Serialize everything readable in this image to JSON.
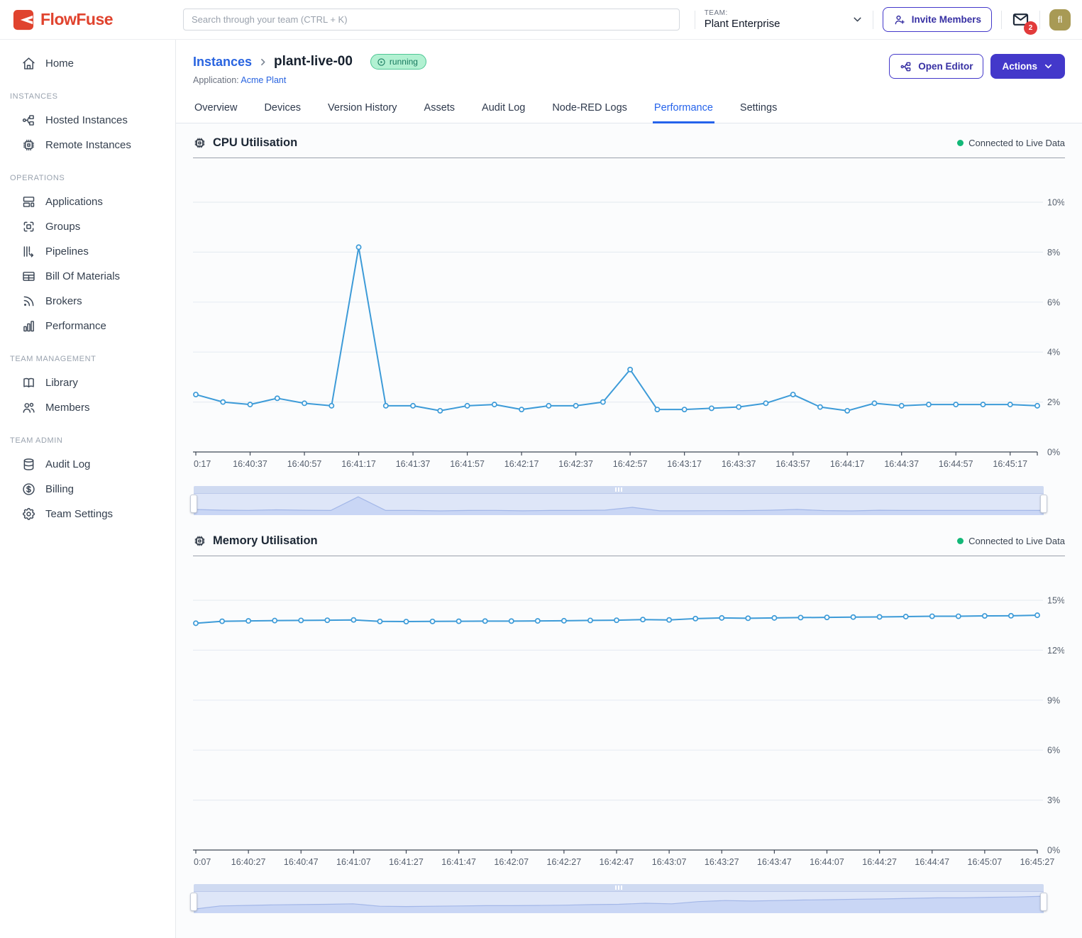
{
  "colors": {
    "brand_red": "#e0432e",
    "accent_indigo": "#4338ca",
    "link_blue": "#2964e0",
    "active_tab_blue": "#2563eb",
    "chart_line_blue": "#3d9bd8",
    "live_green": "#13b878",
    "badge_green_bg": "#b2f1d2",
    "badge_green_text": "#17795f",
    "notification_red": "#e23b3b",
    "avatar_olive": "#a89a55"
  },
  "header": {
    "logo_text": "FlowFuse",
    "search_placeholder": "Search through your team (CTRL + K)",
    "team_label": "TEAM:",
    "team_name": "Plant Enterprise",
    "invite_members_label": "Invite Members",
    "notification_count": "2",
    "avatar_initials": "fl"
  },
  "sidebar": {
    "sections": [
      {
        "heading": null,
        "items": [
          {
            "label": "Home",
            "icon": "home-icon"
          }
        ]
      },
      {
        "heading": "INSTANCES",
        "items": [
          {
            "label": "Hosted Instances",
            "icon": "hosted-instances-icon"
          },
          {
            "label": "Remote Instances",
            "icon": "remote-instances-icon"
          }
        ]
      },
      {
        "heading": "OPERATIONS",
        "items": [
          {
            "label": "Applications",
            "icon": "applications-icon"
          },
          {
            "label": "Groups",
            "icon": "groups-icon"
          },
          {
            "label": "Pipelines",
            "icon": "pipelines-icon"
          },
          {
            "label": "Bill Of Materials",
            "icon": "bill-of-materials-icon"
          },
          {
            "label": "Brokers",
            "icon": "brokers-icon"
          },
          {
            "label": "Performance",
            "icon": "performance-icon"
          }
        ]
      },
      {
        "heading": "TEAM MANAGEMENT",
        "items": [
          {
            "label": "Library",
            "icon": "library-icon"
          },
          {
            "label": "Members",
            "icon": "members-icon"
          }
        ]
      },
      {
        "heading": "TEAM ADMIN",
        "items": [
          {
            "label": "Audit Log",
            "icon": "audit-log-icon"
          },
          {
            "label": "Billing",
            "icon": "billing-icon"
          },
          {
            "label": "Team Settings",
            "icon": "team-settings-icon"
          }
        ]
      }
    ]
  },
  "page": {
    "breadcrumb": {
      "root": "Instances",
      "current": "plant-live-00"
    },
    "status_badge": "running",
    "application_label": "Application:",
    "application_name": "Acme Plant",
    "open_editor_label": "Open Editor",
    "actions_label": "Actions",
    "tabs": [
      "Overview",
      "Devices",
      "Version History",
      "Assets",
      "Audit Log",
      "Node-RED Logs",
      "Performance",
      "Settings"
    ],
    "active_tab": "Performance"
  },
  "chart_data": [
    {
      "id": "cpu",
      "type": "line",
      "title": "CPU Utilisation",
      "live_status": "Connected to Live Data",
      "color": "#3d9bd8",
      "grid": true,
      "legend_position": "none",
      "ylim": [
        0,
        10
      ],
      "ytick_step": 2,
      "ytick_labels": [
        "0%",
        "2%",
        "4%",
        "6%",
        "8%",
        "10%"
      ],
      "x": [
        "16:40:17",
        "16:40:27",
        "16:40:37",
        "16:40:47",
        "16:40:57",
        "16:41:07",
        "16:41:17",
        "16:41:27",
        "16:41:37",
        "16:41:47",
        "16:41:57",
        "16:42:07",
        "16:42:17",
        "16:42:27",
        "16:42:37",
        "16:42:47",
        "16:42:57",
        "16:43:07",
        "16:43:17",
        "16:43:27",
        "16:43:37",
        "16:43:47",
        "16:43:57",
        "16:44:07",
        "16:44:17",
        "16:44:27",
        "16:44:37",
        "16:44:47",
        "16:44:57",
        "16:45:07",
        "16:45:17",
        "16:45:27"
      ],
      "xtick_labels": [
        "0:17",
        "16:40:37",
        "16:40:57",
        "16:41:17",
        "16:41:37",
        "16:41:57",
        "16:42:17",
        "16:42:37",
        "16:42:57",
        "16:43:17",
        "16:43:37",
        "16:43:57",
        "16:44:17",
        "16:44:37",
        "16:44:57",
        "16:45:17"
      ],
      "values": [
        2.3,
        2.0,
        1.9,
        2.15,
        1.95,
        1.85,
        8.2,
        1.85,
        1.85,
        1.65,
        1.85,
        1.9,
        1.7,
        1.85,
        1.85,
        2.0,
        3.3,
        1.7,
        1.7,
        1.75,
        1.8,
        1.95,
        2.3,
        1.8,
        1.65,
        1.95,
        1.85,
        1.9,
        1.9,
        1.9,
        1.9,
        1.85
      ],
      "brush_scale": [
        0,
        8.6
      ]
    },
    {
      "id": "memory",
      "type": "line",
      "title": "Memory Utilisation",
      "live_status": "Connected to Live Data",
      "color": "#3d9bd8",
      "grid": true,
      "legend_position": "none",
      "ylim": [
        0,
        15
      ],
      "ytick_step": 3,
      "ytick_labels": [
        "0%",
        "3%",
        "6%",
        "9%",
        "12%",
        "15%"
      ],
      "x": [
        "16:40:07",
        "16:40:17",
        "16:40:27",
        "16:40:37",
        "16:40:47",
        "16:40:57",
        "16:41:07",
        "16:41:17",
        "16:41:27",
        "16:41:37",
        "16:41:47",
        "16:41:57",
        "16:42:07",
        "16:42:17",
        "16:42:27",
        "16:42:37",
        "16:42:47",
        "16:42:57",
        "16:43:07",
        "16:43:17",
        "16:43:27",
        "16:43:37",
        "16:43:47",
        "16:43:57",
        "16:44:07",
        "16:44:17",
        "16:44:27",
        "16:44:37",
        "16:44:47",
        "16:44:57",
        "16:45:07",
        "16:45:17",
        "16:45:27"
      ],
      "xtick_labels": [
        "0:07",
        "16:40:27",
        "16:40:47",
        "16:41:07",
        "16:41:27",
        "16:41:47",
        "16:42:07",
        "16:42:27",
        "16:42:47",
        "16:43:07",
        "16:43:27",
        "16:43:47",
        "16:44:07",
        "16:44:27",
        "16:44:47",
        "16:45:07",
        "16:45:27"
      ],
      "values": [
        13.62,
        13.74,
        13.76,
        13.78,
        13.79,
        13.8,
        13.82,
        13.73,
        13.72,
        13.73,
        13.74,
        13.75,
        13.75,
        13.76,
        13.77,
        13.79,
        13.8,
        13.84,
        13.82,
        13.9,
        13.94,
        13.92,
        13.94,
        13.96,
        13.97,
        13.99,
        14.0,
        14.02,
        14.04,
        14.04,
        14.06,
        14.07,
        14.1
      ],
      "brush_scale": [
        13.5,
        14.18
      ]
    }
  ]
}
